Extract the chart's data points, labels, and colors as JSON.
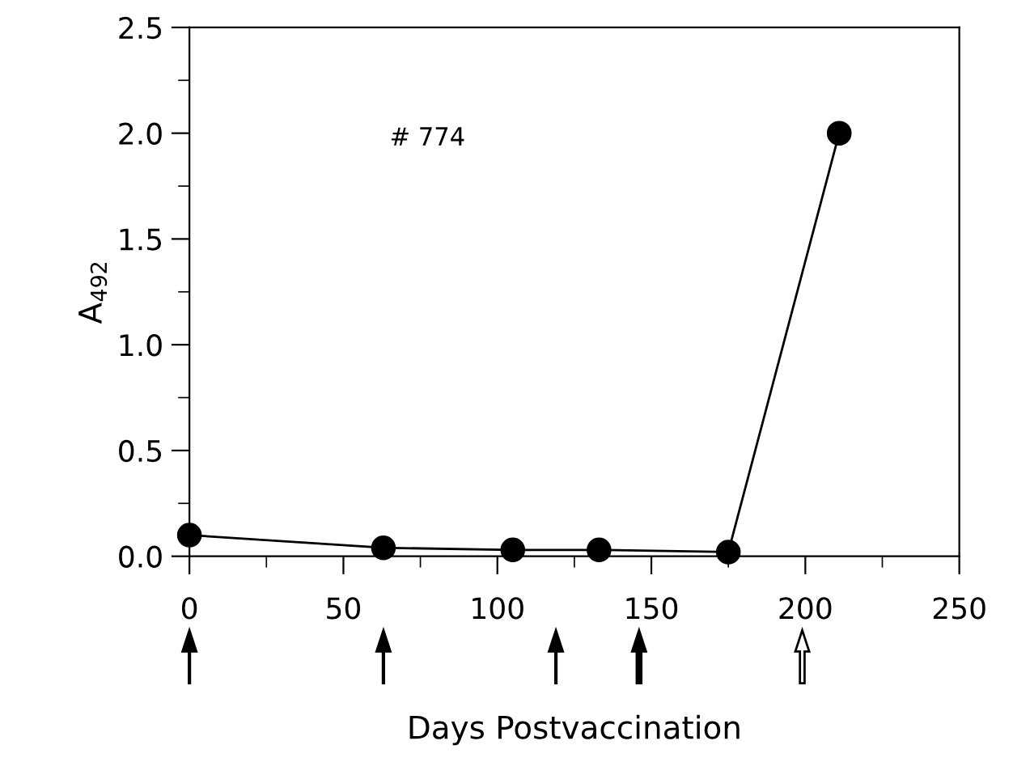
{
  "chart_data": {
    "type": "line",
    "xlabel": "Days Postvaccination",
    "ylabel": "A$_{492}$",
    "x": [
      0,
      63,
      105,
      133,
      175,
      211
    ],
    "series": [
      {
        "color": "#000000",
        "values": [
          0.1,
          0.04,
          0.03,
          0.03,
          0.02,
          2.0
        ]
      }
    ],
    "marker": "circle",
    "line_style": "solid",
    "grid": false,
    "legend": false,
    "xlim": [
      0,
      250
    ],
    "xticks": [
      0,
      50,
      100,
      150,
      200,
      250
    ],
    "ylim": [
      0,
      2.5
    ],
    "yticks": [
      {
        "value": 0,
        "label": "0.0"
      },
      {
        "value": 0.5,
        "label": "0.5"
      },
      {
        "value": 1,
        "label": "1.0"
      },
      {
        "value": 1.5,
        "label": "1.5"
      },
      {
        "value": 2,
        "label": "2.0"
      },
      {
        "value": 2.5,
        "label": "2.5"
      }
    ],
    "annotations": [
      "# 774"
    ]
  }
}
